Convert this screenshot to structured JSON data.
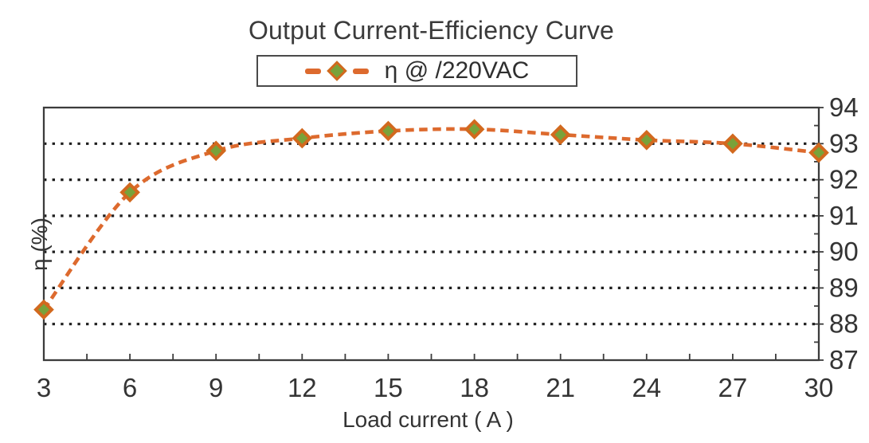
{
  "title": "Output Current-Efficiency Curve",
  "legend": {
    "label": "η @ /220VAC"
  },
  "axes": {
    "xlabel": "Load current ( A )",
    "ylabel": "η (%)"
  },
  "chart_data": {
    "type": "line",
    "title": "Output Current-Efficiency Curve",
    "xlabel": "Load current ( A )",
    "ylabel": "η (%)",
    "legend_entries": [
      "η @ /220VAC"
    ],
    "legend_position": "top-center-boxed",
    "line_style": "dashed",
    "marker": "diamond",
    "grid": "horizontal-dotted",
    "xlim": [
      3,
      30
    ],
    "ylim": [
      87,
      94
    ],
    "x": [
      3,
      6,
      9,
      12,
      15,
      18,
      21,
      24,
      27,
      30
    ],
    "series": [
      {
        "name": "η @ /220VAC",
        "values": [
          88.4,
          91.65,
          92.8,
          93.15,
          93.35,
          93.4,
          93.25,
          93.1,
          93.0,
          92.75
        ]
      }
    ],
    "x_label_ticks": [
      3,
      6,
      9,
      12,
      15,
      18,
      21,
      24,
      27,
      30
    ],
    "x_tick_step": 1.5,
    "y_label_ticks": [
      87,
      88,
      89,
      90,
      91,
      92,
      93,
      94
    ],
    "y_minor_step": 0.5,
    "y_gridlines": [
      88,
      89,
      90,
      91,
      92,
      93
    ],
    "colors": {
      "line": "#dd6a2e",
      "marker_fill": "#79a23a",
      "marker_border": "#d2691e",
      "grid": "#1e1e1e",
      "axis": "#3c3c3c",
      "text": "#343434"
    }
  }
}
